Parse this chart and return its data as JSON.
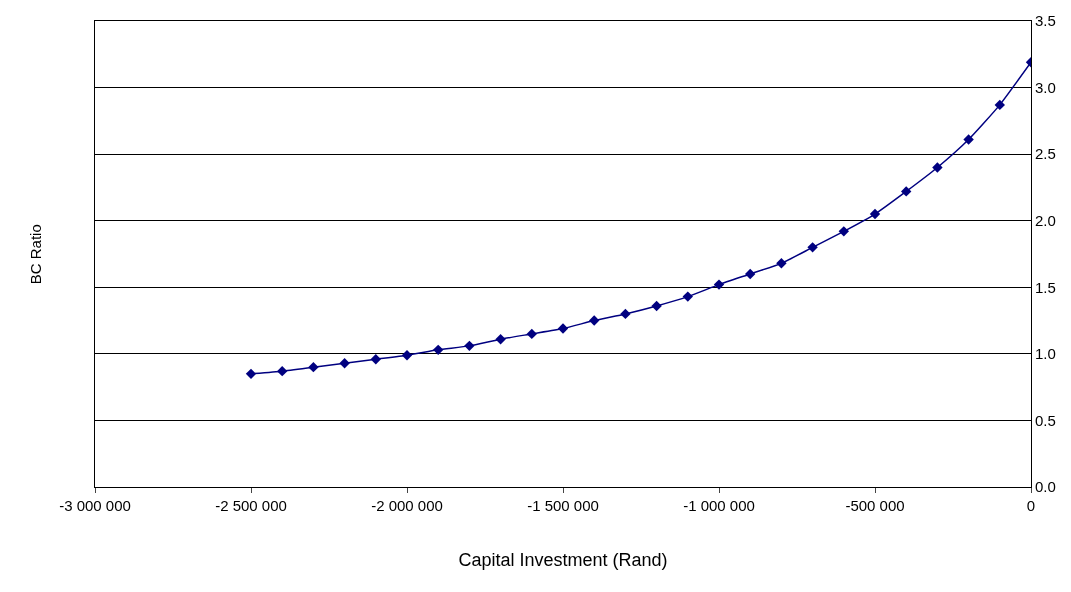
{
  "chart_data": {
    "type": "line",
    "xlabel": "Capital Investment (Rand)",
    "ylabel": "BC Ratio",
    "x": [
      -2500000,
      -2400000,
      -2300000,
      -2200000,
      -2100000,
      -2000000,
      -1900000,
      -1800000,
      -1700000,
      -1600000,
      -1500000,
      -1400000,
      -1300000,
      -1200000,
      -1100000,
      -1000000,
      -900000,
      -800000,
      -700000,
      -600000,
      -500000,
      -400000,
      -300000,
      -200000,
      -100000,
      0
    ],
    "series": [
      {
        "color": "#000080",
        "values": [
          0.85,
          0.87,
          0.9,
          0.93,
          0.96,
          0.99,
          1.03,
          1.06,
          1.11,
          1.15,
          1.19,
          1.25,
          1.3,
          1.36,
          1.43,
          1.52,
          1.6,
          1.68,
          1.8,
          1.92,
          2.05,
          2.22,
          2.4,
          2.61,
          2.87,
          3.19
        ]
      }
    ],
    "xlim": [
      -3000000,
      0
    ],
    "xticks": [
      {
        "value": -3000000,
        "label": "-3 000 000"
      },
      {
        "value": -2500000,
        "label": "-2 500 000"
      },
      {
        "value": -2000000,
        "label": "-2 000 000"
      },
      {
        "value": -1500000,
        "label": "-1 500 000"
      },
      {
        "value": -1000000,
        "label": "-1 000 000"
      },
      {
        "value": -500000,
        "label": "-500 000"
      },
      0
    ],
    "ylim": [
      0,
      3.5
    ],
    "yticks": [
      {
        "value": 0,
        "label": "0.0"
      },
      {
        "value": 0.5,
        "label": "0.5"
      },
      {
        "value": 1,
        "label": "1.0"
      },
      {
        "value": 1.5,
        "label": "1.5"
      },
      {
        "value": 2,
        "label": "2.0"
      },
      {
        "value": 2.5,
        "label": "2.5"
      },
      {
        "value": 3,
        "label": "3.0"
      },
      {
        "value": 3.5,
        "label": "3.5"
      }
    ],
    "grid": "y",
    "marker": "diamond",
    "line_style": "solid",
    "legend": false
  }
}
